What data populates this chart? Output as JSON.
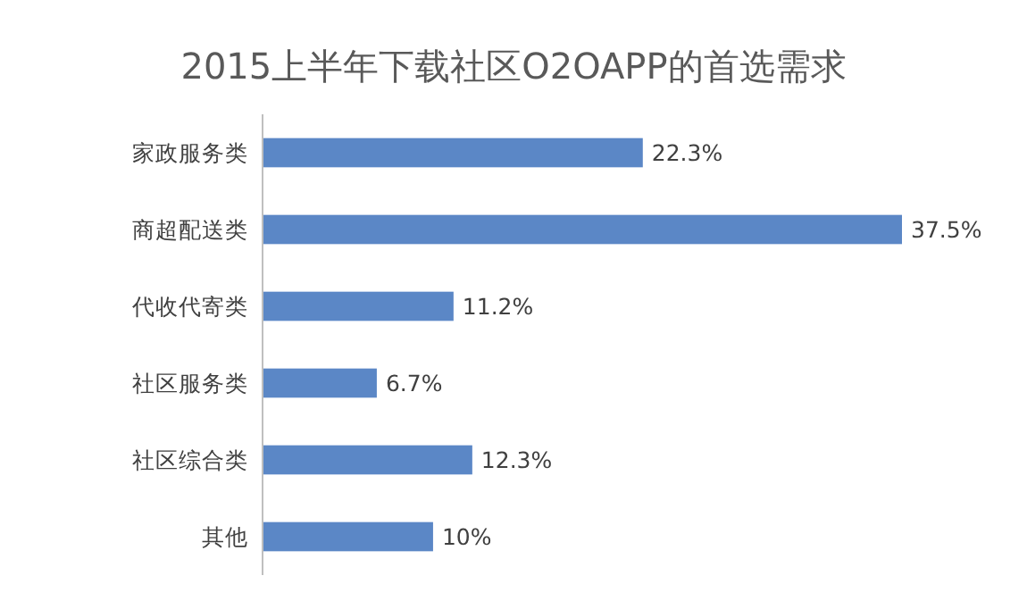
{
  "chart_data": {
    "type": "bar",
    "orientation": "horizontal",
    "title": "2015上半年下载社区O2OAPP的首选需求",
    "categories": [
      "家政服务类",
      "商超配送类",
      "代收代寄类",
      "社区服务类",
      "社区综合类",
      "其他"
    ],
    "values": [
      22.3,
      37.5,
      11.2,
      6.7,
      12.3,
      10
    ],
    "value_labels": [
      "22.3%",
      "37.5%",
      "11.2%",
      "6.7%",
      "12.3%",
      "10%"
    ],
    "color": "#5b87c6"
  }
}
